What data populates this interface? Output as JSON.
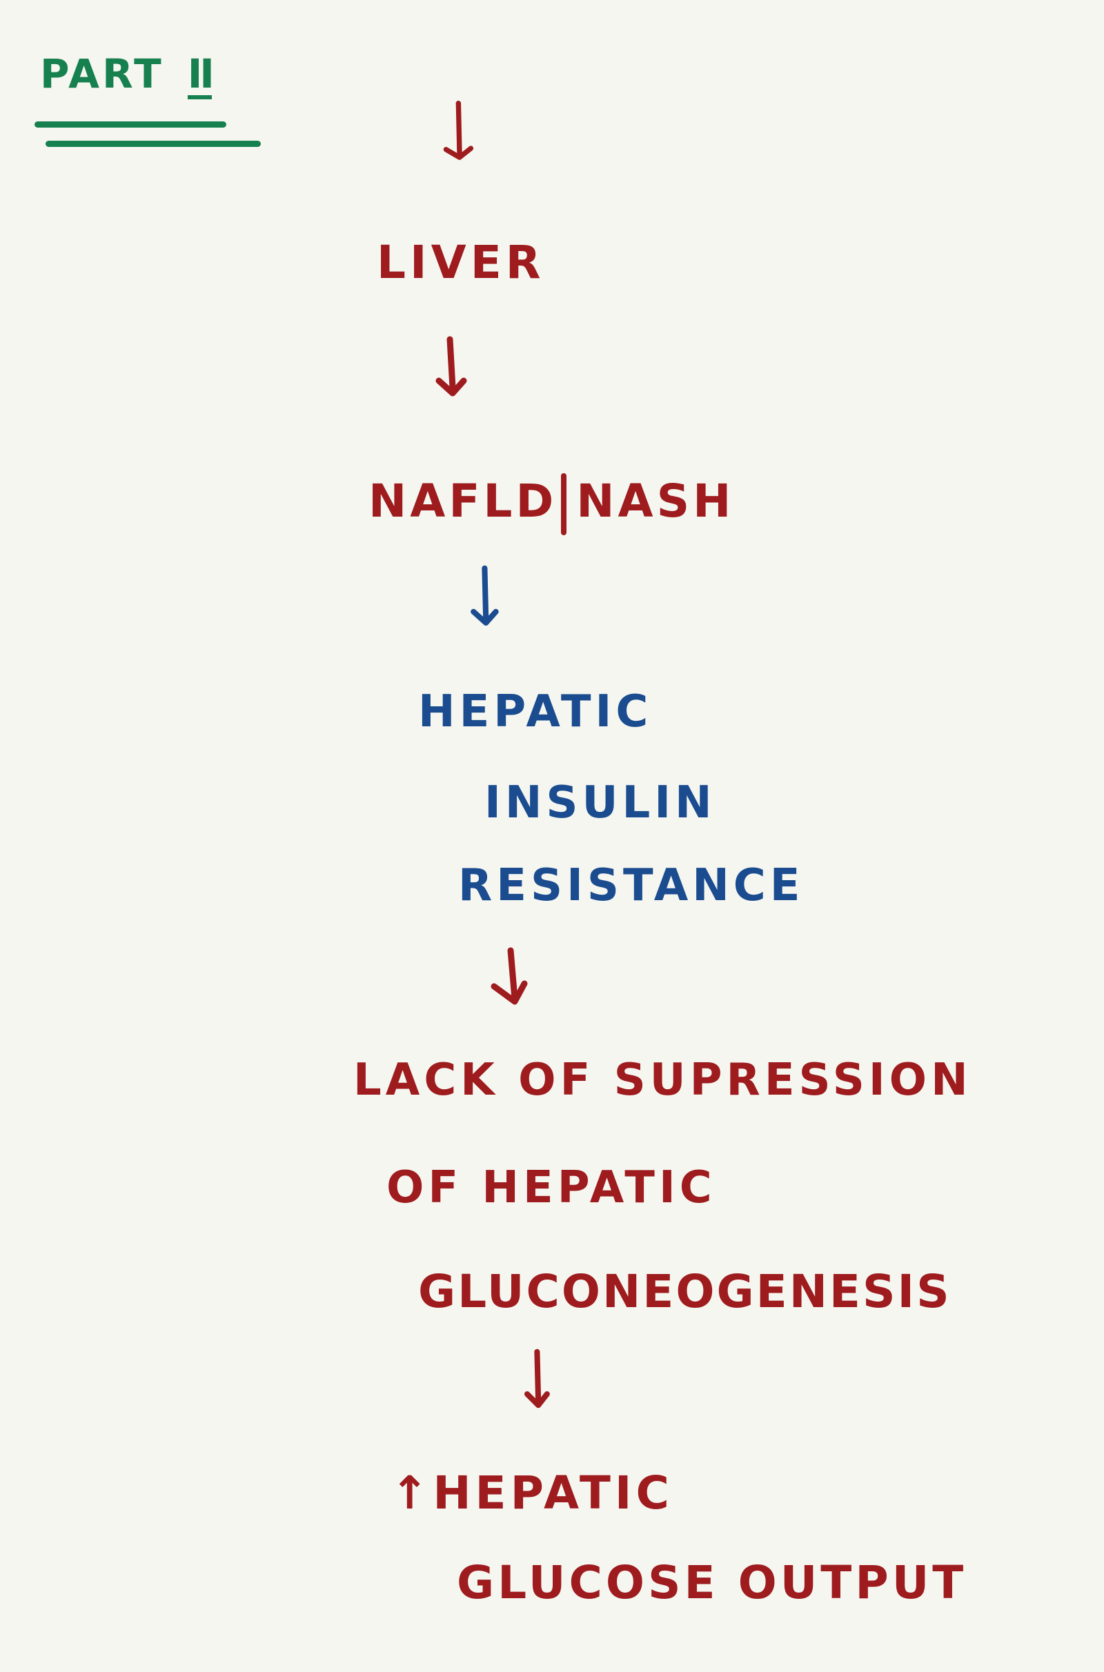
{
  "title": {
    "label": "PART",
    "numeral": "II"
  },
  "colors": {
    "title_green": "#16804f",
    "ink_red": "#9e1b1e",
    "ink_blue": "#1a4c8f",
    "paper": "#f6f6f1"
  },
  "flow": {
    "liver": "LIVER",
    "nafld": "NAFLD",
    "nash": "NASH",
    "hepatic_ir_line1": "HEPATIC",
    "hepatic_ir_line2": "INSULIN",
    "hepatic_ir_line3": "RESISTANCE",
    "lack_line1": "LACK OF SUPRESSION",
    "lack_line2": "OF HEPATIC",
    "lack_line3": "GLUCONEOGENESIS",
    "output_arrow": "↑",
    "output_line1": "HEPATIC",
    "output_line2": "GLUCOSE OUTPUT"
  },
  "icons": {
    "connector": "arrow-down-icon",
    "increase": "arrow-up-icon"
  }
}
